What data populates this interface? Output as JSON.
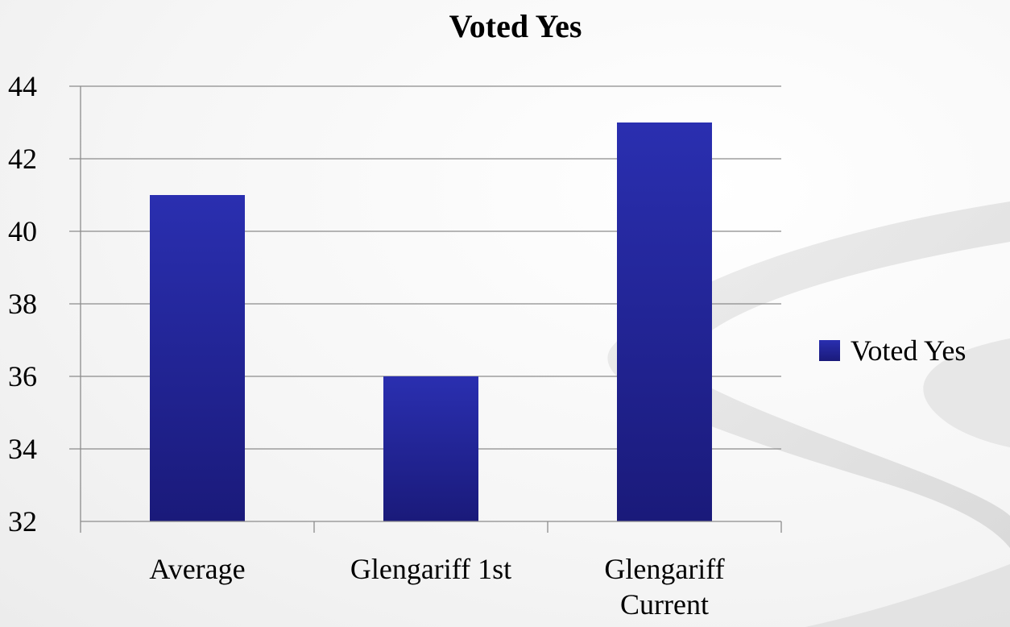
{
  "chart_data": {
    "type": "bar",
    "title": "Voted Yes",
    "xlabel": "",
    "ylabel": "",
    "categories": [
      [
        "Average"
      ],
      [
        "Glengariff 1st"
      ],
      [
        "Glengariff",
        "Current"
      ]
    ],
    "series": [
      {
        "name": "Voted Yes",
        "values": [
          41,
          36,
          43
        ]
      }
    ],
    "ylim": [
      32,
      44
    ],
    "yticks": [
      32,
      34,
      36,
      38,
      40,
      42,
      44
    ],
    "grid": true,
    "legend": "right",
    "colors": {
      "bar_top": "#2a2fb0",
      "bar_bottom": "#1a1a7a",
      "gridline": "#8c8c8c",
      "swoosh": "#dcdcdc"
    }
  }
}
